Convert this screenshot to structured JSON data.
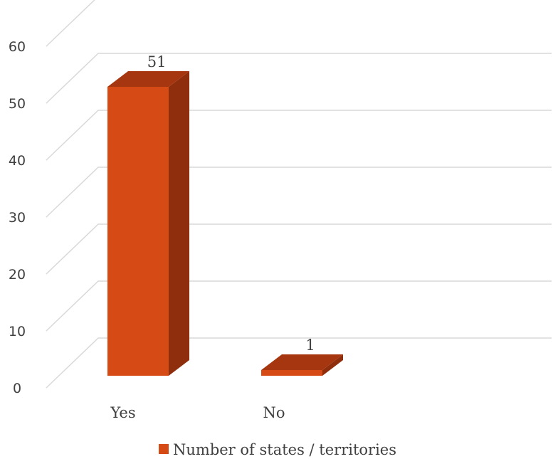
{
  "chart_data": {
    "type": "bar",
    "categories": [
      "Yes",
      "No"
    ],
    "series": [
      {
        "name": "Number of states / territories",
        "values": [
          51,
          1
        ]
      }
    ],
    "ylim": [
      0,
      60
    ],
    "yticks": [
      0,
      10,
      20,
      30,
      40,
      50,
      60
    ],
    "grid": true,
    "legend_position": "bottom",
    "style": "3d-column",
    "colors": {
      "front": "#d54a15",
      "side": "#8f2e0d",
      "top": "#a6360f",
      "grid": "#d9d9d9",
      "text": "#404040"
    }
  }
}
